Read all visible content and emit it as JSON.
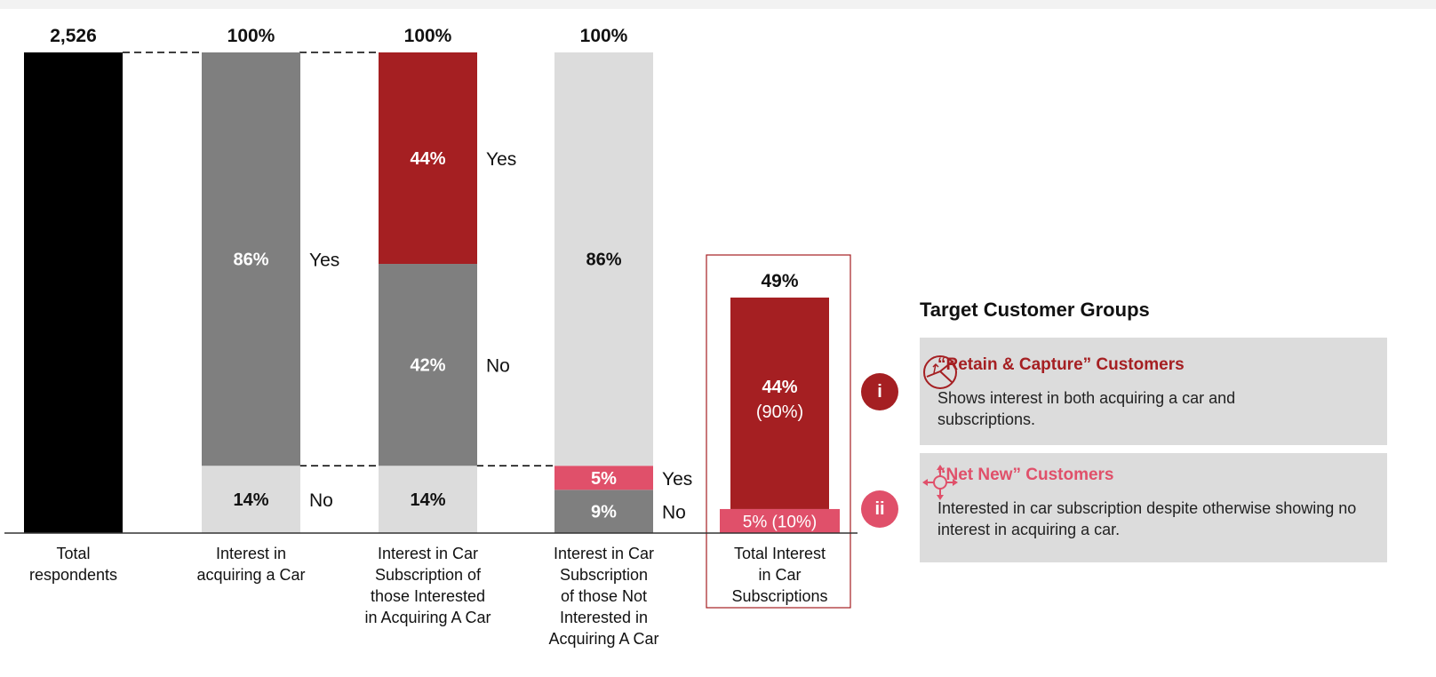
{
  "chart_data": {
    "type": "bar",
    "subtype": "stacked-waterfall",
    "ylim": [
      0,
      100
    ],
    "grid": false,
    "categories": [
      "Total respondents",
      "Interest in acquiring a Car",
      "Interest in Car Subscription of those Interested in Acquiring A Car",
      "Interest in Car Subscription of those Not Interested in Acquiring A Car",
      "Total Interest in Car Subscriptions"
    ],
    "category_lines": [
      [
        "Total",
        "respondents"
      ],
      [
        "Interest in",
        "acquiring a Car"
      ],
      [
        "Interest in Car",
        "Subscription of",
        "those Interested",
        "in Acquiring A Car"
      ],
      [
        "Interest in Car",
        "Subscription",
        "of those Not",
        "Interested in",
        "Acquiring A Car"
      ],
      [
        "Total Interest",
        "in Car",
        "Subscriptions"
      ]
    ],
    "top_labels": [
      "2,526",
      "100%",
      "100%",
      "100%",
      "49%"
    ],
    "bars": [
      {
        "segments": [
          {
            "from": 0,
            "to": 100,
            "label": "",
            "side": "",
            "color": "#000000"
          }
        ]
      },
      {
        "segments": [
          {
            "from": 0,
            "to": 14,
            "label": "14%",
            "side": "No",
            "color": "#dcdcdc"
          },
          {
            "from": 14,
            "to": 100,
            "label": "86%",
            "side": "Yes",
            "color": "#7f7f7f"
          }
        ]
      },
      {
        "segments": [
          {
            "from": 0,
            "to": 14,
            "label": "14%",
            "side": "",
            "color": "#dcdcdc"
          },
          {
            "from": 14,
            "to": 56,
            "label": "42%",
            "side": "No",
            "color": "#7f7f7f"
          },
          {
            "from": 56,
            "to": 100,
            "label": "44%",
            "side": "Yes",
            "color": "#a51f22"
          }
        ]
      },
      {
        "segments": [
          {
            "from": 0,
            "to": 9,
            "label": "9%",
            "side": "No",
            "color": "#7f7f7f"
          },
          {
            "from": 9,
            "to": 14,
            "label": "5%",
            "side": "Yes",
            "color": "#e0506a"
          },
          {
            "from": 14,
            "to": 100,
            "label": "86%",
            "side": "",
            "color": "#dcdcdc"
          }
        ]
      },
      {
        "segments": [
          {
            "from": 0,
            "to": 5,
            "label": "5% (10%)",
            "side": "",
            "color": "#e0506a"
          },
          {
            "from": 5,
            "to": 49,
            "label": "44%",
            "sublabel": "(90%)",
            "side": "",
            "color": "#a51f22"
          }
        ]
      }
    ],
    "highlight_color": "#a51f22"
  },
  "panel": {
    "title": "Target Customer Groups",
    "groups": [
      {
        "badge": "i",
        "title": "“Retain & Capture” Customers",
        "desc": "Shows interest in both acquiring a car and subscriptions.",
        "color": "#a51f22",
        "icon": "steering-wheel-icon"
      },
      {
        "badge": "ii",
        "title": "“Net New” Customers",
        "desc": "Interested in car subscription despite otherwise showing no interest in acquiring a car.",
        "color": "#e0506a",
        "icon": "direction-arrows-icon"
      }
    ]
  }
}
